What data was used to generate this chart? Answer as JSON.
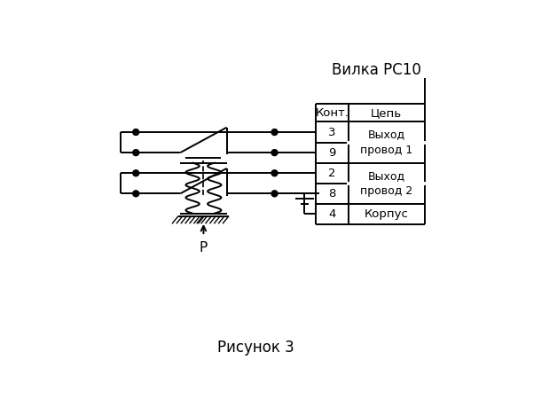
{
  "title_top": "Вилка РС10",
  "title_bottom": "Рисунок 3",
  "pressure_label": "P",
  "line_color": "#000000",
  "bg_color": "#ffffff",
  "font_size_title": 12,
  "font_size_table": 9.5,
  "font_size_label": 11
}
